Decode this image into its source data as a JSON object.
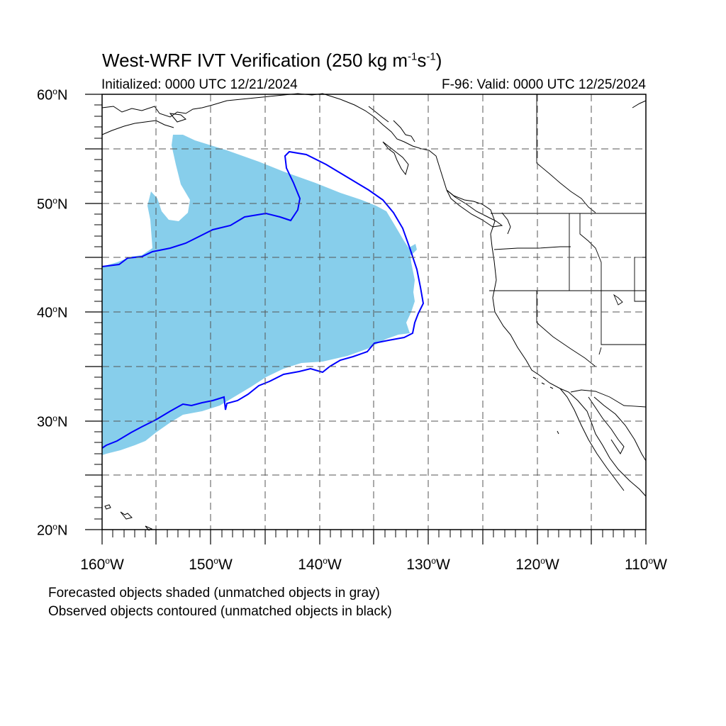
{
  "title": {
    "main": "West-WRF IVT Verification (250 kg m",
    "exp1": "-1",
    "mid": "s",
    "exp2": "-1",
    "end": ")"
  },
  "subtitle": {
    "left": "Initialized: 0000 UTC 12/21/2024",
    "right": "F-96: Valid: 0000 UTC 12/25/2024"
  },
  "map": {
    "region": "Northeast Pacific / western North America",
    "lon_range": [
      -160,
      -110
    ],
    "lat_range": [
      20,
      60
    ],
    "grid": "dashed every 5 degrees",
    "forecast_object_color": "#87ceeb",
    "observed_object_color": "#0000ff",
    "coastline_color": "#000000"
  },
  "lat_labels": [
    {
      "deg": "60",
      "hemi": "N"
    },
    {
      "deg": "50",
      "hemi": "N"
    },
    {
      "deg": "40",
      "hemi": "N"
    },
    {
      "deg": "30",
      "hemi": "N"
    },
    {
      "deg": "20",
      "hemi": "N"
    }
  ],
  "lon_labels": [
    {
      "deg": "160",
      "hemi": "W"
    },
    {
      "deg": "150",
      "hemi": "W"
    },
    {
      "deg": "140",
      "hemi": "W"
    },
    {
      "deg": "130",
      "hemi": "W"
    },
    {
      "deg": "120",
      "hemi": "W"
    },
    {
      "deg": "110",
      "hemi": "W"
    }
  ],
  "notes": {
    "line1": "Forecasted objects shaded (unmatched objects in gray)",
    "line2": "Observed objects contoured (unmatched objects in black)"
  }
}
